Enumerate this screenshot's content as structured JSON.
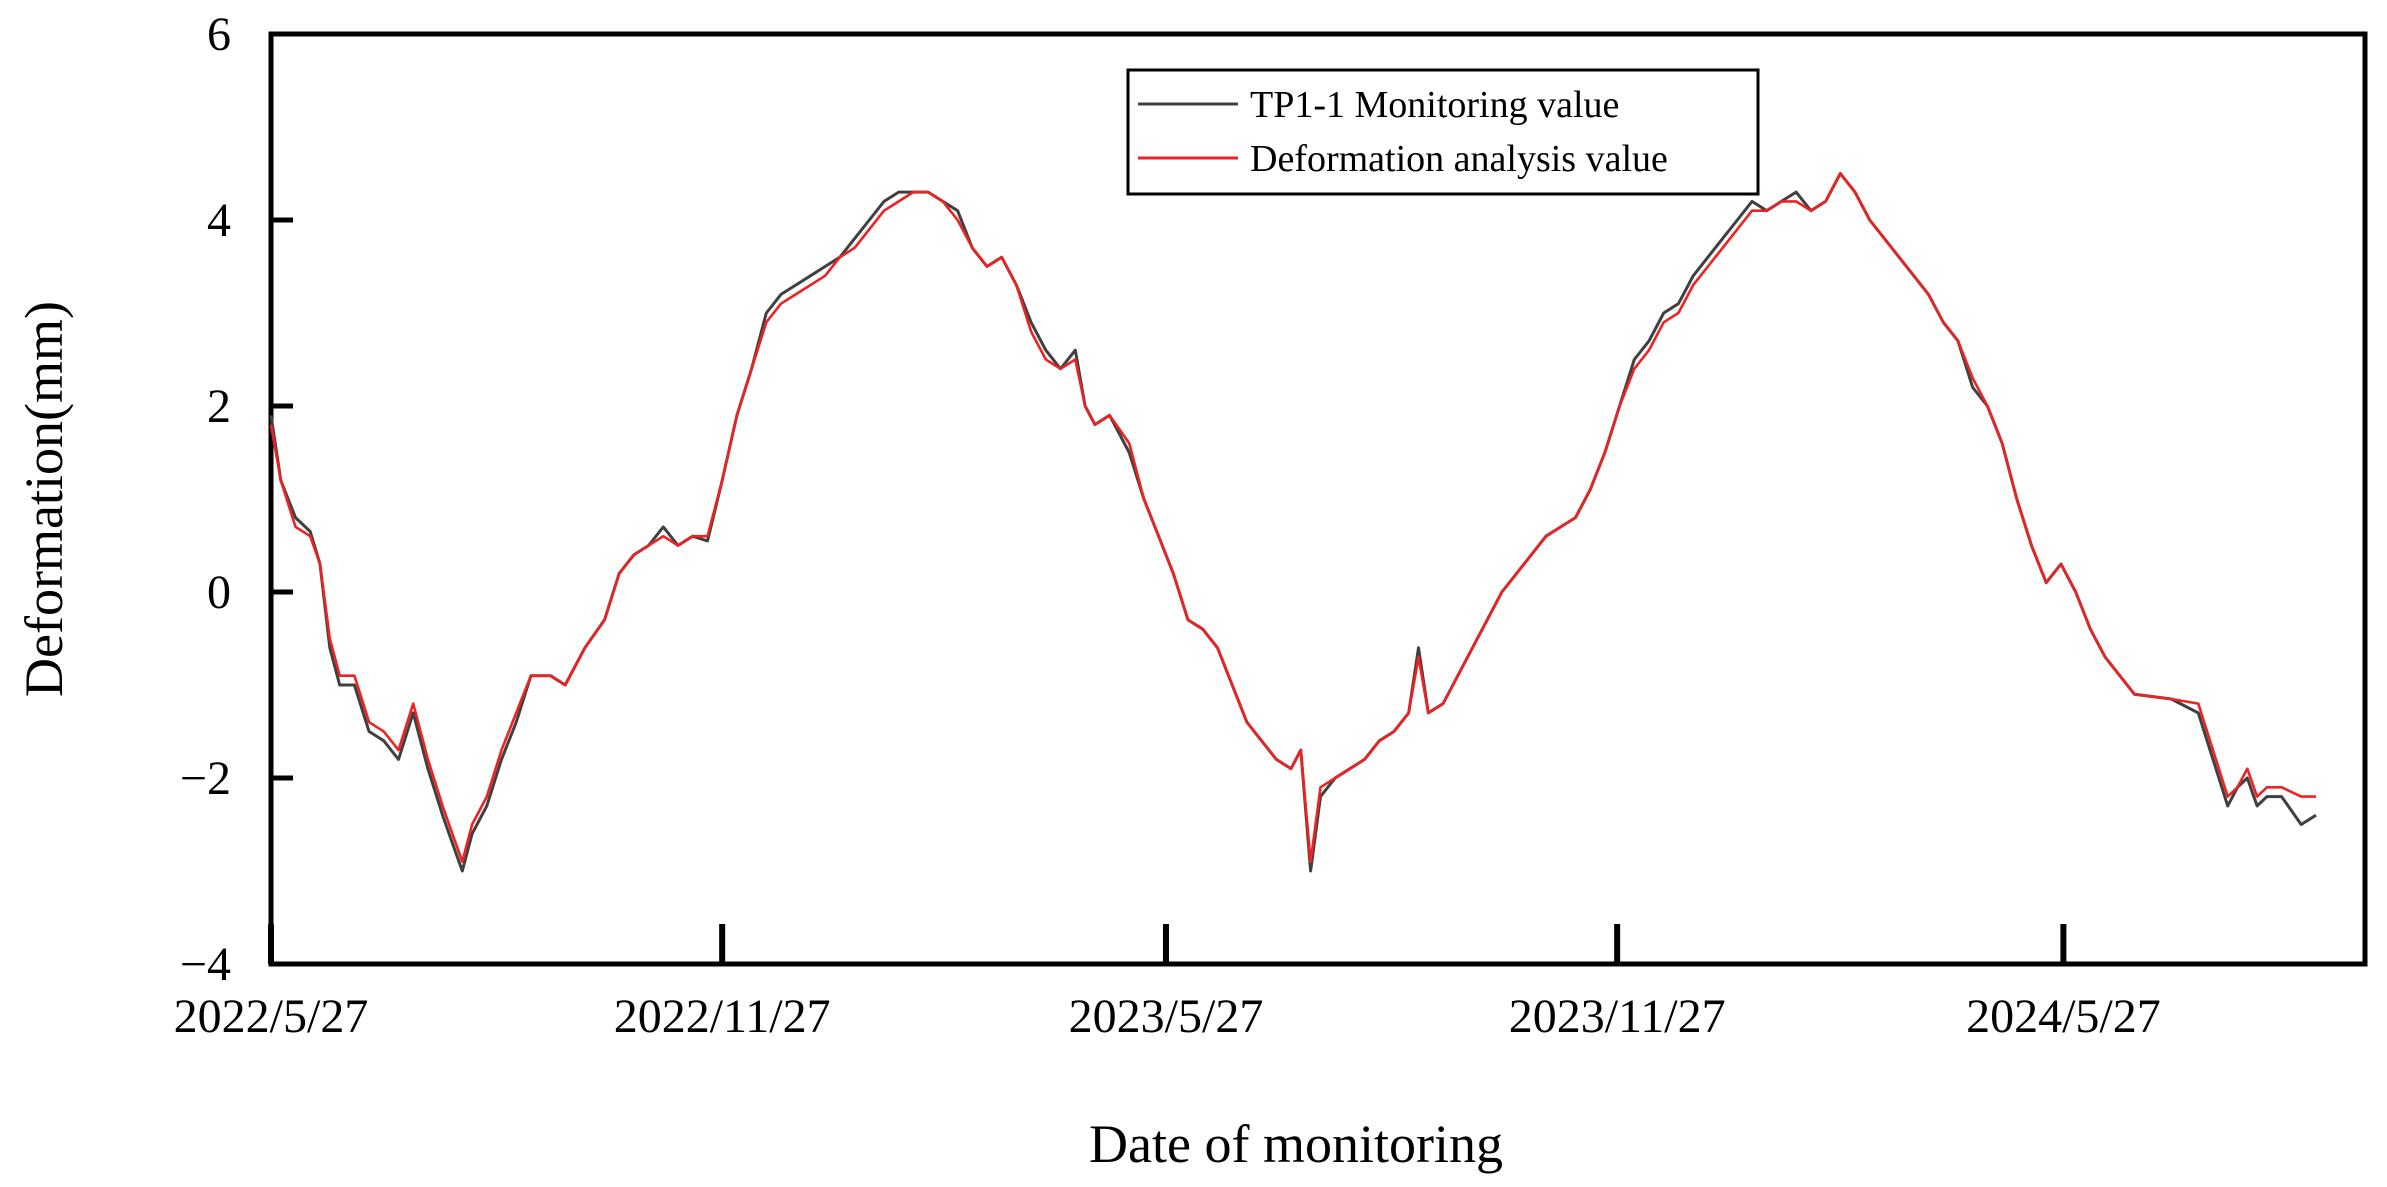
{
  "chart_data": {
    "type": "line",
    "title": "",
    "xlabel": "Date of monitoring",
    "ylabel": "Deformation(mm)",
    "ylim": [
      -4,
      6
    ],
    "xlim_days": [
      0,
      854
    ],
    "x_unit": "days since 2022/5/27",
    "yticks": [
      -4,
      -2,
      0,
      2,
      4,
      6
    ],
    "ytick_labels": [
      "−4",
      "−2",
      "0",
      "2",
      "4",
      "6"
    ],
    "xticks": [
      {
        "day": 0,
        "label": "2022/5/27"
      },
      {
        "day": 184,
        "label": "2022/11/27"
      },
      {
        "day": 365,
        "label": "2023/5/27"
      },
      {
        "day": 549,
        "label": "2023/11/27"
      },
      {
        "day": 731,
        "label": "2024/5/27"
      }
    ],
    "legend_position": "top-center",
    "series": [
      {
        "name": "TP1-1 Monitoring value",
        "color": "#404040",
        "points": [
          [
            0,
            1.9
          ],
          [
            4,
            1.2
          ],
          [
            10,
            0.8
          ],
          [
            16,
            0.65
          ],
          [
            20,
            0.3
          ],
          [
            24,
            -0.6
          ],
          [
            28,
            -1.0
          ],
          [
            34,
            -1.0
          ],
          [
            40,
            -1.5
          ],
          [
            46,
            -1.6
          ],
          [
            52,
            -1.8
          ],
          [
            58,
            -1.3
          ],
          [
            64,
            -1.9
          ],
          [
            70,
            -2.4
          ],
          [
            74,
            -2.7
          ],
          [
            78,
            -3.0
          ],
          [
            82,
            -2.6
          ],
          [
            88,
            -2.3
          ],
          [
            94,
            -1.8
          ],
          [
            100,
            -1.4
          ],
          [
            106,
            -0.9
          ],
          [
            114,
            -0.9
          ],
          [
            120,
            -1.0
          ],
          [
            128,
            -0.6
          ],
          [
            136,
            -0.3
          ],
          [
            142,
            0.2
          ],
          [
            148,
            0.4
          ],
          [
            154,
            0.5
          ],
          [
            160,
            0.7
          ],
          [
            166,
            0.5
          ],
          [
            172,
            0.6
          ],
          [
            178,
            0.55
          ],
          [
            184,
            1.2
          ],
          [
            190,
            1.9
          ],
          [
            196,
            2.4
          ],
          [
            202,
            3.0
          ],
          [
            208,
            3.2
          ],
          [
            214,
            3.3
          ],
          [
            220,
            3.4
          ],
          [
            226,
            3.5
          ],
          [
            232,
            3.6
          ],
          [
            238,
            3.8
          ],
          [
            244,
            4.0
          ],
          [
            250,
            4.2
          ],
          [
            256,
            4.3
          ],
          [
            262,
            4.3
          ],
          [
            268,
            4.3
          ],
          [
            274,
            4.2
          ],
          [
            280,
            4.1
          ],
          [
            286,
            3.7
          ],
          [
            292,
            3.5
          ],
          [
            298,
            3.6
          ],
          [
            304,
            3.3
          ],
          [
            310,
            2.9
          ],
          [
            316,
            2.6
          ],
          [
            322,
            2.4
          ],
          [
            328,
            2.6
          ],
          [
            332,
            2.0
          ],
          [
            336,
            1.8
          ],
          [
            342,
            1.9
          ],
          [
            350,
            1.5
          ],
          [
            356,
            1.0
          ],
          [
            362,
            0.6
          ],
          [
            368,
            0.2
          ],
          [
            374,
            -0.3
          ],
          [
            380,
            -0.4
          ],
          [
            386,
            -0.6
          ],
          [
            392,
            -1.0
          ],
          [
            398,
            -1.4
          ],
          [
            404,
            -1.6
          ],
          [
            410,
            -1.8
          ],
          [
            416,
            -1.9
          ],
          [
            420,
            -1.7
          ],
          [
            424,
            -3.0
          ],
          [
            428,
            -2.2
          ],
          [
            434,
            -2.0
          ],
          [
            440,
            -1.9
          ],
          [
            446,
            -1.8
          ],
          [
            452,
            -1.6
          ],
          [
            458,
            -1.5
          ],
          [
            464,
            -1.3
          ],
          [
            468,
            -0.6
          ],
          [
            472,
            -1.3
          ],
          [
            478,
            -1.2
          ],
          [
            484,
            -0.9
          ],
          [
            490,
            -0.6
          ],
          [
            496,
            -0.3
          ],
          [
            502,
            0.0
          ],
          [
            508,
            0.2
          ],
          [
            514,
            0.4
          ],
          [
            520,
            0.6
          ],
          [
            526,
            0.7
          ],
          [
            532,
            0.8
          ],
          [
            538,
            1.1
          ],
          [
            544,
            1.5
          ],
          [
            550,
            2.0
          ],
          [
            556,
            2.5
          ],
          [
            562,
            2.7
          ],
          [
            568,
            3.0
          ],
          [
            574,
            3.1
          ],
          [
            580,
            3.4
          ],
          [
            586,
            3.6
          ],
          [
            592,
            3.8
          ],
          [
            598,
            4.0
          ],
          [
            604,
            4.2
          ],
          [
            610,
            4.1
          ],
          [
            616,
            4.2
          ],
          [
            622,
            4.3
          ],
          [
            628,
            4.1
          ],
          [
            634,
            4.2
          ],
          [
            640,
            4.5
          ],
          [
            646,
            4.3
          ],
          [
            652,
            4.0
          ],
          [
            658,
            3.8
          ],
          [
            664,
            3.6
          ],
          [
            670,
            3.4
          ],
          [
            676,
            3.2
          ],
          [
            682,
            2.9
          ],
          [
            688,
            2.7
          ],
          [
            694,
            2.2
          ],
          [
            700,
            2.0
          ],
          [
            706,
            1.6
          ],
          [
            712,
            1.0
          ],
          [
            718,
            0.5
          ],
          [
            724,
            0.1
          ],
          [
            730,
            0.3
          ],
          [
            736,
            0.0
          ],
          [
            742,
            -0.4
          ],
          [
            748,
            -0.7
          ],
          [
            754,
            -0.9
          ],
          [
            760,
            -1.1
          ],
          [
            775,
            -1.15
          ],
          [
            786,
            -1.3
          ],
          [
            792,
            -1.8
          ],
          [
            798,
            -2.3
          ],
          [
            802,
            -2.1
          ],
          [
            806,
            -2.0
          ],
          [
            810,
            -2.3
          ],
          [
            814,
            -2.2
          ],
          [
            820,
            -2.2
          ],
          [
            828,
            -2.5
          ],
          [
            834,
            -2.4
          ]
        ]
      },
      {
        "name": "Deformation analysis value",
        "color": "#ee2222",
        "points": [
          [
            0,
            1.8
          ],
          [
            4,
            1.2
          ],
          [
            10,
            0.7
          ],
          [
            16,
            0.6
          ],
          [
            20,
            0.3
          ],
          [
            24,
            -0.5
          ],
          [
            28,
            -0.9
          ],
          [
            34,
            -0.9
          ],
          [
            40,
            -1.4
          ],
          [
            46,
            -1.5
          ],
          [
            52,
            -1.7
          ],
          [
            58,
            -1.2
          ],
          [
            64,
            -1.8
          ],
          [
            70,
            -2.3
          ],
          [
            74,
            -2.6
          ],
          [
            78,
            -2.9
          ],
          [
            82,
            -2.5
          ],
          [
            88,
            -2.2
          ],
          [
            94,
            -1.7
          ],
          [
            100,
            -1.3
          ],
          [
            106,
            -0.9
          ],
          [
            114,
            -0.9
          ],
          [
            120,
            -1.0
          ],
          [
            128,
            -0.6
          ],
          [
            136,
            -0.3
          ],
          [
            142,
            0.2
          ],
          [
            148,
            0.4
          ],
          [
            154,
            0.5
          ],
          [
            160,
            0.6
          ],
          [
            166,
            0.5
          ],
          [
            172,
            0.6
          ],
          [
            178,
            0.6
          ],
          [
            184,
            1.2
          ],
          [
            190,
            1.9
          ],
          [
            196,
            2.4
          ],
          [
            202,
            2.9
          ],
          [
            208,
            3.1
          ],
          [
            214,
            3.2
          ],
          [
            220,
            3.3
          ],
          [
            226,
            3.4
          ],
          [
            232,
            3.6
          ],
          [
            238,
            3.7
          ],
          [
            244,
            3.9
          ],
          [
            250,
            4.1
          ],
          [
            256,
            4.2
          ],
          [
            262,
            4.3
          ],
          [
            268,
            4.3
          ],
          [
            274,
            4.2
          ],
          [
            280,
            4.0
          ],
          [
            286,
            3.7
          ],
          [
            292,
            3.5
          ],
          [
            298,
            3.6
          ],
          [
            304,
            3.3
          ],
          [
            310,
            2.8
          ],
          [
            316,
            2.5
          ],
          [
            322,
            2.4
          ],
          [
            328,
            2.5
          ],
          [
            332,
            2.0
          ],
          [
            336,
            1.8
          ],
          [
            342,
            1.9
          ],
          [
            350,
            1.6
          ],
          [
            356,
            1.0
          ],
          [
            362,
            0.6
          ],
          [
            368,
            0.2
          ],
          [
            374,
            -0.3
          ],
          [
            380,
            -0.4
          ],
          [
            386,
            -0.6
          ],
          [
            392,
            -1.0
          ],
          [
            398,
            -1.4
          ],
          [
            404,
            -1.6
          ],
          [
            410,
            -1.8
          ],
          [
            416,
            -1.9
          ],
          [
            420,
            -1.7
          ],
          [
            424,
            -2.9
          ],
          [
            428,
            -2.1
          ],
          [
            434,
            -2.0
          ],
          [
            440,
            -1.9
          ],
          [
            446,
            -1.8
          ],
          [
            452,
            -1.6
          ],
          [
            458,
            -1.5
          ],
          [
            464,
            -1.3
          ],
          [
            468,
            -0.7
          ],
          [
            472,
            -1.3
          ],
          [
            478,
            -1.2
          ],
          [
            484,
            -0.9
          ],
          [
            490,
            -0.6
          ],
          [
            496,
            -0.3
          ],
          [
            502,
            0.0
          ],
          [
            508,
            0.2
          ],
          [
            514,
            0.4
          ],
          [
            520,
            0.6
          ],
          [
            526,
            0.7
          ],
          [
            532,
            0.8
          ],
          [
            538,
            1.1
          ],
          [
            544,
            1.5
          ],
          [
            550,
            2.0
          ],
          [
            556,
            2.4
          ],
          [
            562,
            2.6
          ],
          [
            568,
            2.9
          ],
          [
            574,
            3.0
          ],
          [
            580,
            3.3
          ],
          [
            586,
            3.5
          ],
          [
            592,
            3.7
          ],
          [
            598,
            3.9
          ],
          [
            604,
            4.1
          ],
          [
            610,
            4.1
          ],
          [
            616,
            4.2
          ],
          [
            622,
            4.2
          ],
          [
            628,
            4.1
          ],
          [
            634,
            4.2
          ],
          [
            640,
            4.5
          ],
          [
            646,
            4.3
          ],
          [
            652,
            4.0
          ],
          [
            658,
            3.8
          ],
          [
            664,
            3.6
          ],
          [
            670,
            3.4
          ],
          [
            676,
            3.2
          ],
          [
            682,
            2.9
          ],
          [
            688,
            2.7
          ],
          [
            694,
            2.3
          ],
          [
            700,
            2.0
          ],
          [
            706,
            1.6
          ],
          [
            712,
            1.0
          ],
          [
            718,
            0.5
          ],
          [
            724,
            0.1
          ],
          [
            730,
            0.3
          ],
          [
            736,
            0.0
          ],
          [
            742,
            -0.4
          ],
          [
            748,
            -0.7
          ],
          [
            754,
            -0.9
          ],
          [
            760,
            -1.1
          ],
          [
            775,
            -1.15
          ],
          [
            786,
            -1.2
          ],
          [
            792,
            -1.7
          ],
          [
            798,
            -2.2
          ],
          [
            802,
            -2.1
          ],
          [
            806,
            -1.9
          ],
          [
            810,
            -2.2
          ],
          [
            814,
            -2.1
          ],
          [
            820,
            -2.1
          ],
          [
            828,
            -2.2
          ],
          [
            834,
            -2.2
          ]
        ]
      }
    ]
  }
}
